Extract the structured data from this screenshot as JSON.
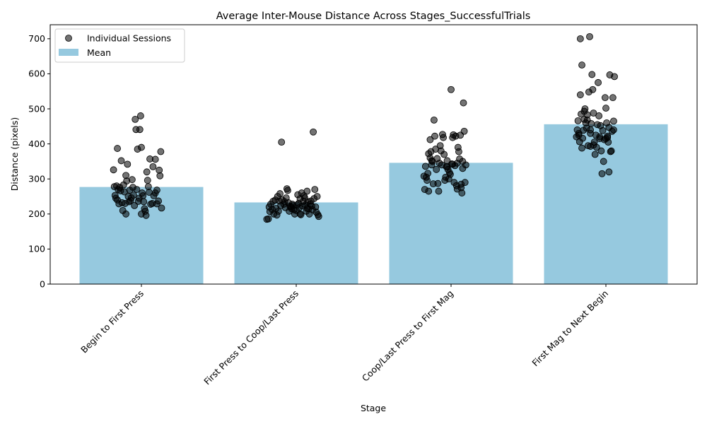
{
  "chart_data": {
    "type": "bar",
    "title": "Average Inter-Mouse Distance Across Stages_SuccessfulTrials",
    "xlabel": "Stage",
    "ylabel": "Distance (pixels)",
    "ylim": [
      0,
      740
    ],
    "yticks": [
      0,
      100,
      200,
      300,
      400,
      500,
      600,
      700
    ],
    "grid": false,
    "legend_position": "top-left",
    "bar_color": "#96c9df",
    "point_color": "#000000",
    "point_alpha": 0.55,
    "categories": [
      "Begin to First Press",
      "First Press to Coop/Last Press",
      "Coop/Last Press to First Mag",
      "First Mag to Next Begin"
    ],
    "series": [
      {
        "name": "Mean",
        "type": "bar",
        "values": [
          277,
          233,
          346,
          456
        ]
      },
      {
        "name": "Individual Sessions",
        "type": "scatter",
        "points": [
          [
            [
              -0.36,
              326
            ],
            [
              -0.32,
              280
            ],
            [
              -0.35,
              278
            ],
            [
              -0.3,
              270
            ],
            [
              -0.34,
              253
            ],
            [
              -0.33,
              245
            ],
            [
              -0.31,
              240
            ],
            [
              -0.29,
              229
            ],
            [
              -0.31,
              387
            ],
            [
              -0.28,
              276
            ],
            [
              -0.27,
              266
            ],
            [
              -0.25,
              232
            ],
            [
              -0.24,
              210
            ],
            [
              -0.26,
              352
            ],
            [
              -0.23,
              283
            ],
            [
              -0.22,
              263
            ],
            [
              -0.21,
              230
            ],
            [
              -0.2,
              310
            ],
            [
              -0.2,
              200
            ],
            [
              -0.18,
              342
            ],
            [
              -0.19,
              294
            ],
            [
              -0.17,
              250
            ],
            [
              -0.16,
              235
            ],
            [
              -0.15,
              268
            ],
            [
              -0.13,
              246
            ],
            [
              -0.12,
              298
            ],
            [
              -0.11,
              276
            ],
            [
              -0.1,
              254
            ],
            [
              -0.09,
              224
            ],
            [
              -0.08,
              470
            ],
            [
              -0.07,
              441
            ],
            [
              -0.05,
              385
            ],
            [
              -0.04,
              236
            ],
            [
              -0.03,
              245
            ],
            [
              -0.01,
              480
            ],
            [
              -0.02,
              441
            ],
            [
              0.0,
              390
            ],
            [
              0.01,
              260
            ],
            [
              0.02,
              252
            ],
            [
              0.03,
              235
            ],
            [
              0.04,
              215
            ],
            [
              0.05,
              208
            ],
            [
              0.06,
              196
            ],
            [
              0.07,
              320
            ],
            [
              0.08,
              296
            ],
            [
              0.09,
              278
            ],
            [
              0.1,
              262
            ],
            [
              0.11,
              357
            ],
            [
              0.12,
              228
            ],
            [
              0.14,
              230
            ],
            [
              0.15,
              335
            ],
            [
              0.16,
              252
            ],
            [
              0.18,
              356
            ],
            [
              0.18,
              260
            ],
            [
              0.2,
              268
            ],
            [
              0.2,
              229
            ],
            [
              0.22,
              237
            ],
            [
              0.23,
              325
            ],
            [
              0.24,
              309
            ],
            [
              0.25,
              378
            ],
            [
              0.26,
              217
            ],
            [
              -0.06,
              270
            ],
            [
              -0.14,
              238
            ],
            [
              0.0,
              200
            ]
          ],
          [
            [
              -0.38,
              185
            ],
            [
              -0.36,
              186
            ],
            [
              -0.35,
              220
            ],
            [
              -0.34,
              207
            ],
            [
              -0.33,
              228
            ],
            [
              -0.31,
              213
            ],
            [
              -0.3,
              236
            ],
            [
              -0.29,
              200
            ],
            [
              -0.27,
              240
            ],
            [
              -0.26,
              216
            ],
            [
              -0.25,
              197
            ],
            [
              -0.24,
              250
            ],
            [
              -0.23,
              208
            ],
            [
              -0.21,
              258
            ],
            [
              -0.2,
              224
            ],
            [
              -0.19,
              405
            ],
            [
              -0.18,
              240
            ],
            [
              -0.16,
              228
            ],
            [
              -0.15,
              235
            ],
            [
              -0.13,
              246
            ],
            [
              -0.12,
              272
            ],
            [
              -0.11,
              267
            ],
            [
              -0.1,
              232
            ],
            [
              -0.09,
              208
            ],
            [
              -0.08,
              222
            ],
            [
              -0.07,
              220
            ],
            [
              -0.06,
              215
            ],
            [
              -0.05,
              228
            ],
            [
              -0.04,
              224
            ],
            [
              -0.03,
              212
            ],
            [
              -0.02,
              200
            ],
            [
              0.0,
              210
            ],
            [
              0.01,
              226
            ],
            [
              0.02,
              255
            ],
            [
              0.03,
              230
            ],
            [
              0.04,
              218
            ],
            [
              0.05,
              200
            ],
            [
              0.06,
              198
            ],
            [
              0.07,
              260
            ],
            [
              0.08,
              223
            ],
            [
              0.09,
              236
            ],
            [
              0.1,
              252
            ],
            [
              0.11,
              246
            ],
            [
              0.12,
              226
            ],
            [
              0.13,
              208
            ],
            [
              0.14,
              265
            ],
            [
              0.15,
              235
            ],
            [
              0.16,
              215
            ],
            [
              0.17,
              200
            ],
            [
              0.18,
              228
            ],
            [
              0.19,
              237
            ],
            [
              0.2,
              223
            ],
            [
              0.21,
              212
            ],
            [
              0.22,
              434
            ],
            [
              0.23,
              244
            ],
            [
              0.24,
              270
            ],
            [
              0.25,
              220
            ],
            [
              0.26,
              205
            ],
            [
              0.27,
              250
            ],
            [
              0.28,
              198
            ],
            [
              0.29,
              193
            ],
            [
              -0.22,
              237
            ],
            [
              0.05,
              244
            ],
            [
              -0.14,
              218
            ],
            [
              0.14,
              216
            ]
          ],
          [
            [
              -0.35,
              308
            ],
            [
              -0.34,
              270
            ],
            [
              -0.33,
              336
            ],
            [
              -0.32,
              305
            ],
            [
              -0.31,
              296
            ],
            [
              -0.3,
              316
            ],
            [
              -0.29,
              372
            ],
            [
              -0.29,
              265
            ],
            [
              -0.27,
              360
            ],
            [
              -0.27,
              412
            ],
            [
              -0.26,
              378
            ],
            [
              -0.25,
              340
            ],
            [
              -0.24,
              350
            ],
            [
              -0.23,
              286
            ],
            [
              -0.22,
              468
            ],
            [
              -0.21,
              422
            ],
            [
              -0.2,
              385
            ],
            [
              -0.19,
              327
            ],
            [
              -0.18,
              358
            ],
            [
              -0.17,
              287
            ],
            [
              -0.16,
              265
            ],
            [
              -0.15,
              345
            ],
            [
              -0.14,
              395
            ],
            [
              -0.13,
              380
            ],
            [
              -0.12,
              340
            ],
            [
              -0.11,
              427
            ],
            [
              -0.1,
              418
            ],
            [
              -0.09,
              370
            ],
            [
              -0.08,
              296
            ],
            [
              -0.07,
              305
            ],
            [
              -0.06,
              335
            ],
            [
              -0.05,
              352
            ],
            [
              -0.04,
              327
            ],
            [
              -0.03,
              300
            ],
            [
              -0.02,
              318
            ],
            [
              -0.01,
              313
            ],
            [
              0.0,
              555
            ],
            [
              0.01,
              343
            ],
            [
              0.02,
              418
            ],
            [
              0.03,
              426
            ],
            [
              0.04,
              290
            ],
            [
              0.05,
              338
            ],
            [
              0.06,
              422
            ],
            [
              0.07,
              281
            ],
            [
              0.08,
              271
            ],
            [
              0.09,
              390
            ],
            [
              0.1,
              378
            ],
            [
              0.11,
              357
            ],
            [
              0.12,
              425
            ],
            [
              0.13,
              275
            ],
            [
              0.14,
              260
            ],
            [
              0.15,
              330
            ],
            [
              0.16,
              517
            ],
            [
              0.17,
              436
            ],
            [
              0.18,
              290
            ],
            [
              0.19,
              340
            ],
            [
              0.08,
              345
            ],
            [
              -0.05,
              335
            ],
            [
              -0.25,
              352
            ],
            [
              0.02,
              342
            ],
            [
              0.15,
              350
            ],
            [
              0.13,
              285
            ]
          ],
          [
            [
              -0.38,
              420
            ],
            [
              -0.37,
              440
            ],
            [
              -0.36,
              466
            ],
            [
              -0.35,
              430
            ],
            [
              -0.34,
              406
            ],
            [
              -0.33,
              700
            ],
            [
              -0.33,
              540
            ],
            [
              -0.32,
              485
            ],
            [
              -0.31,
              625
            ],
            [
              -0.3,
              416
            ],
            [
              -0.29,
              439
            ],
            [
              -0.28,
              470
            ],
            [
              -0.27,
              500
            ],
            [
              -0.26,
              460
            ],
            [
              -0.25,
              445
            ],
            [
              -0.24,
              483
            ],
            [
              -0.23,
              395
            ],
            [
              -0.22,
              548
            ],
            [
              -0.21,
              706
            ],
            [
              -0.2,
              393
            ],
            [
              -0.2,
              430
            ],
            [
              -0.19,
              458
            ],
            [
              -0.18,
              598
            ],
            [
              -0.17,
              555
            ],
            [
              -0.16,
              488
            ],
            [
              -0.15,
              405
            ],
            [
              -0.14,
              370
            ],
            [
              -0.13,
              425
            ],
            [
              -0.12,
              390
            ],
            [
              -0.11,
              455
            ],
            [
              -0.1,
              575
            ],
            [
              -0.09,
              480
            ],
            [
              -0.08,
              420
            ],
            [
              -0.07,
              452
            ],
            [
              -0.06,
              380
            ],
            [
              -0.05,
              315
            ],
            [
              -0.04,
              438
            ],
            [
              -0.03,
              350
            ],
            [
              -0.02,
              412
            ],
            [
              -0.01,
              532
            ],
            [
              0.0,
              502
            ],
            [
              0.01,
              460
            ],
            [
              0.02,
              422
            ],
            [
              0.03,
              405
            ],
            [
              0.04,
              320
            ],
            [
              0.05,
              597
            ],
            [
              0.06,
              378
            ],
            [
              0.07,
              380
            ],
            [
              0.08,
              436
            ],
            [
              0.09,
              532
            ],
            [
              0.1,
              465
            ],
            [
              0.11,
              592
            ],
            [
              0.1,
              440
            ],
            [
              -0.31,
              388
            ],
            [
              -0.16,
              397
            ],
            [
              -0.24,
              468
            ],
            [
              -0.08,
              415
            ],
            [
              0.02,
              418
            ],
            [
              -0.35,
              425
            ],
            [
              0.04,
              447
            ],
            [
              -0.2,
              440
            ],
            [
              0.0,
              415
            ],
            [
              -0.28,
              493
            ]
          ]
        ]
      }
    ]
  },
  "legend": {
    "scatter_label": "Individual Sessions",
    "bar_label": "Mean"
  }
}
